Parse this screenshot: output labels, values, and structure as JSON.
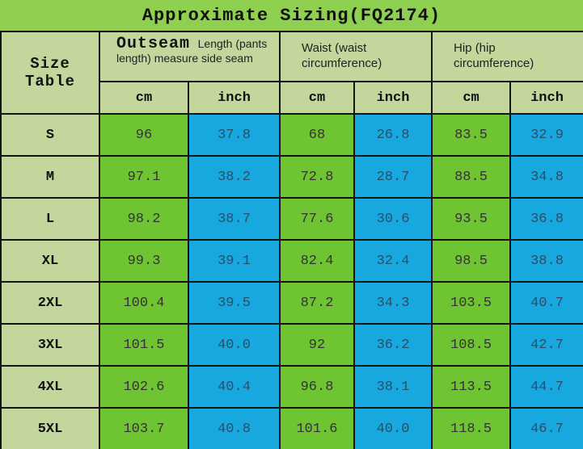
{
  "title": "Approximate Sizing(FQ2174)",
  "colors": {
    "title_bar_green": "#8FD050",
    "header_pale_green": "#C3D69B",
    "cm_cell_green": "#6EC531",
    "inch_cell_blue": "#17A8E0",
    "border_black": "#141414",
    "number_text_on_green": "#333333",
    "number_text_on_blue": "#2B4E68"
  },
  "chart_data": {
    "type": "table",
    "title": "Approximate Sizing(FQ2174)",
    "corner_label": "Size Table",
    "column_groups": [
      {
        "title_strong": "Outseam",
        "title_rest": "Length (pants length) measure side seam",
        "units": [
          "cm",
          "inch"
        ]
      },
      {
        "title": "Waist (waist circumference)",
        "units": [
          "cm",
          "inch"
        ]
      },
      {
        "title": "Hip (hip circumference)",
        "units": [
          "cm",
          "inch"
        ]
      }
    ],
    "unit_headers": [
      "cm",
      "inch",
      "cm",
      "inch",
      "cm",
      "inch"
    ],
    "rows": [
      {
        "size": "S",
        "values": [
          "96",
          "37.8",
          "68",
          "26.8",
          "83.5",
          "32.9"
        ]
      },
      {
        "size": "M",
        "values": [
          "97.1",
          "38.2",
          "72.8",
          "28.7",
          "88.5",
          "34.8"
        ]
      },
      {
        "size": "L",
        "values": [
          "98.2",
          "38.7",
          "77.6",
          "30.6",
          "93.5",
          "36.8"
        ]
      },
      {
        "size": "XL",
        "values": [
          "99.3",
          "39.1",
          "82.4",
          "32.4",
          "98.5",
          "38.8"
        ]
      },
      {
        "size": "2XL",
        "values": [
          "100.4",
          "39.5",
          "87.2",
          "34.3",
          "103.5",
          "40.7"
        ]
      },
      {
        "size": "3XL",
        "values": [
          "101.5",
          "40.0",
          "92",
          "36.2",
          "108.5",
          "42.7"
        ]
      },
      {
        "size": "4XL",
        "values": [
          "102.6",
          "40.4",
          "96.8",
          "38.1",
          "113.5",
          "44.7"
        ]
      },
      {
        "size": "5XL",
        "values": [
          "103.7",
          "40.8",
          "101.6",
          "40.0",
          "118.5",
          "46.7"
        ]
      }
    ]
  }
}
